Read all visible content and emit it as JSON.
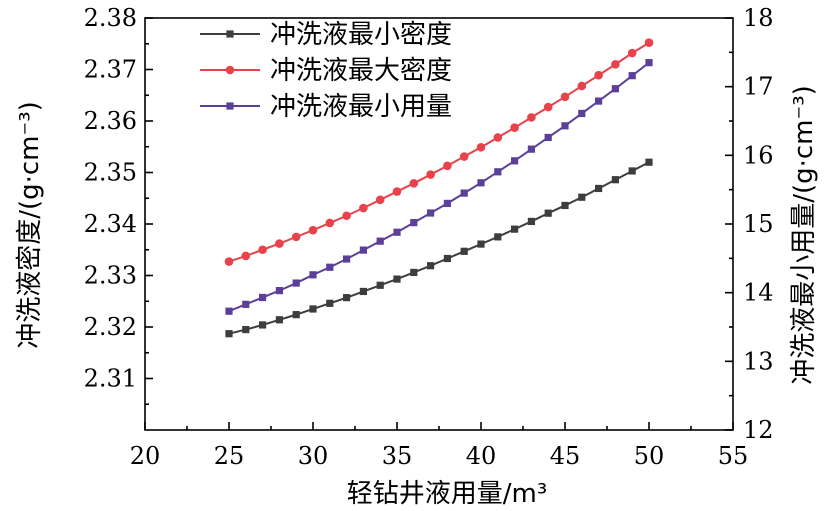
{
  "chart_data": {
    "type": "line",
    "xlabel": "轻钻井液用量/m³",
    "ylabel_left": "冲洗液密度/(g·cm⁻³)",
    "ylabel_right": "冲洗液最小用量/(g·cm⁻³)",
    "xlim": [
      20,
      55
    ],
    "ylim_left": [
      2.3,
      2.38
    ],
    "ylim_right": [
      12,
      18
    ],
    "x_ticks": [
      "20",
      "25",
      "30",
      "35",
      "40",
      "45",
      "50",
      "55"
    ],
    "y_left_ticks": [
      "2.31",
      "2.32",
      "2.33",
      "2.34",
      "2.35",
      "2.36",
      "2.37",
      "2.38"
    ],
    "y_right_ticks": [
      "12",
      "13",
      "14",
      "15",
      "16",
      "17",
      "18"
    ],
    "grid": false,
    "legend_position": "top-left",
    "x": [
      25,
      26,
      27,
      28,
      29,
      30,
      31,
      32,
      33,
      34,
      35,
      36,
      37,
      38,
      39,
      40,
      41,
      42,
      43,
      44,
      45,
      46,
      47,
      48,
      49,
      50
    ],
    "series": [
      {
        "name": "冲洗液最小密度",
        "axis": "left",
        "color": "#3d3d3d",
        "marker": "square",
        "values": [
          2.3187,
          2.3195,
          2.3204,
          2.3214,
          2.3224,
          2.3235,
          2.3246,
          2.3257,
          2.3269,
          2.3281,
          2.3293,
          2.3306,
          2.3319,
          2.3333,
          2.3347,
          2.3361,
          2.3375,
          2.339,
          2.3405,
          2.3421,
          2.3436,
          2.3452,
          2.3469,
          2.3486,
          2.3503,
          2.352
        ]
      },
      {
        "name": "冲洗液最大密度",
        "axis": "left",
        "color": "#e8424a",
        "marker": "circle",
        "values": [
          2.3327,
          2.3338,
          2.335,
          2.3362,
          2.3375,
          2.3388,
          2.3402,
          2.3416,
          2.3431,
          2.3447,
          2.3463,
          2.3479,
          2.3496,
          2.3513,
          2.3531,
          2.3549,
          2.3568,
          2.3587,
          2.3607,
          2.3627,
          2.3647,
          2.3668,
          2.3689,
          2.371,
          2.3732,
          2.3752
        ]
      },
      {
        "name": "冲洗液最小用量",
        "axis": "right",
        "color": "#5b3f98",
        "marker": "square",
        "values": [
          13.73,
          13.83,
          13.93,
          14.03,
          14.14,
          14.26,
          14.37,
          14.49,
          14.62,
          14.75,
          14.88,
          15.02,
          15.16,
          15.3,
          15.45,
          15.6,
          15.76,
          15.92,
          16.09,
          16.26,
          16.43,
          16.61,
          16.79,
          16.97,
          17.16,
          17.35
        ]
      }
    ]
  }
}
